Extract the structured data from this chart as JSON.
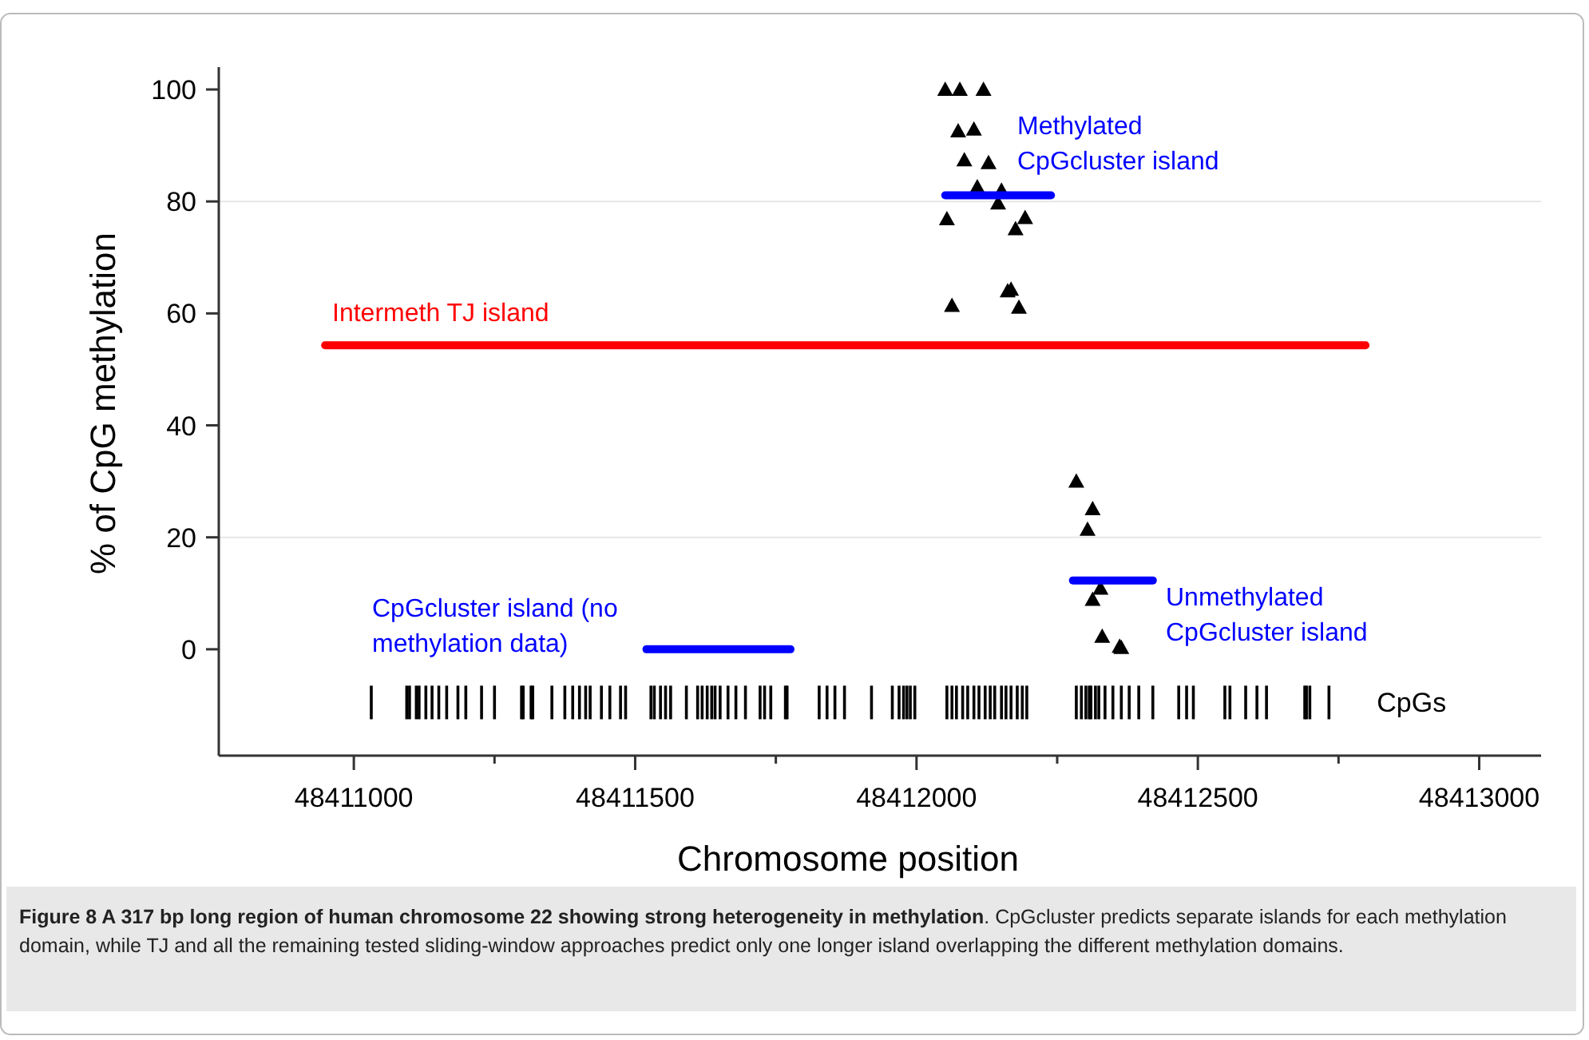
{
  "chart_data": {
    "type": "scatter",
    "xlabel": "Chromosome position",
    "ylabel": "% of CpG methylation",
    "xlim": [
      48410760,
      48413110
    ],
    "ylim": [
      -19,
      104
    ],
    "xticks": [
      48411000,
      {
        "value": 48411250,
        "label": null
      },
      48411500,
      {
        "value": 48411750,
        "label": null
      },
      48412000,
      {
        "value": 48412250,
        "label": null
      },
      48412500,
      {
        "value": 48412750,
        "label": null
      },
      48413000
    ],
    "yticks": [
      0,
      20,
      40,
      60,
      80,
      100
    ],
    "legend": "right",
    "grid": false,
    "ref_lines": [
      {
        "axis": "y",
        "value": 80,
        "color": "#e6e6e6"
      },
      {
        "axis": "y",
        "value": 20,
        "color": "#e6e6e6"
      }
    ],
    "series": [
      {
        "marker": "triangle",
        "color": "#000000",
        "x": [
          48412051,
          48412077,
          48412119,
          48412074,
          48412102,
          48412085,
          48412128,
          48412108,
          48412151,
          48412145,
          48412054,
          48412193,
          48412176,
          48412162,
          48412168,
          48412063,
          48412182,
          48412284,
          48412313,
          48412304,
          48412327,
          48412313,
          48412330,
          48412364,
          48412361
        ],
        "values": [
          100,
          100,
          100,
          92.6,
          92.9,
          87.4,
          86.9,
          82.6,
          82,
          79.7,
          76.9,
          77.1,
          75.1,
          64,
          64.3,
          61.4,
          61.1,
          30,
          25.1,
          21.4,
          10.9,
          8.9,
          2.3,
          0.3,
          0.5
        ]
      },
      {
        "type": "line",
        "color": "#ff0000",
        "x": [
          48410949,
          48412798
        ],
        "values": [
          54.3,
          54.3
        ]
      },
      {
        "type": "line",
        "color": "#0000ff",
        "x": [
          48411520,
          48411776
        ],
        "values": [
          0,
          0
        ]
      },
      {
        "type": "line",
        "color": "#0000ff",
        "x": [
          48412051,
          48412239
        ],
        "values": [
          81.1,
          81.1
        ]
      },
      {
        "type": "line",
        "color": "#0000ff",
        "x": [
          48412278,
          48412420
        ],
        "values": [
          12.3,
          12.3
        ]
      },
      {
        "name": "CpGs",
        "type": "bar",
        "base": [
          -12.5,
          -12.5,
          -12.5,
          -12.5,
          -12.5,
          -12.5,
          -12.5,
          -12.5,
          -12.5,
          -12.5,
          -12.5,
          -12.5,
          -12.5,
          -12.5,
          -12.5,
          -12.5,
          -12.5,
          -12.5,
          -12.5,
          -12.5,
          -12.5,
          -12.5,
          -12.5,
          -12.5,
          -12.5,
          -12.5,
          -12.5,
          -12.5,
          -12.5,
          -12.5,
          -12.5,
          -12.5,
          -12.5,
          -12.5,
          -12.5,
          -12.5,
          -12.5,
          -12.5,
          -12.5,
          -12.5,
          -12.5,
          -12.5,
          -12.5,
          -12.5,
          -12.5,
          -12.5,
          -12.5,
          -12.5,
          -12.5,
          -12.5,
          -12.5,
          -12.5,
          -12.5,
          -12.5,
          -12.5,
          -12.5,
          -12.5,
          -12.5,
          -12.5,
          -12.5,
          -12.5,
          -12.5,
          -12.5,
          -12.5,
          -12.5,
          -12.5,
          -12.5,
          -12.5,
          -12.5,
          -12.5,
          -12.5,
          -12.5,
          -12.5,
          -12.5,
          -12.5,
          -12.5,
          -12.5,
          -12.5,
          -12.5,
          -12.5,
          -12.5,
          -12.5,
          -12.5,
          -12.5,
          -12.5,
          -12.5,
          -12.5,
          -12.5,
          -12.5,
          -12.5,
          -12.5,
          -12.5,
          -12.5,
          -12.5,
          -12.5,
          -12.5,
          -12.5,
          -12.5,
          -12.5
        ],
        "color": "#000000",
        "x": [
          48411031,
          48411094,
          48411099,
          48411111,
          48411116,
          48411128,
          48411139,
          48411151,
          48411165,
          48411185,
          48411199,
          48411227,
          48411250,
          48411298,
          48411301,
          48411315,
          48411318,
          48411352,
          48411375,
          48411389,
          48411401,
          48411412,
          48411420,
          48411440,
          48411455,
          48411474,
          48411483,
          48411528,
          48411534,
          48411545,
          48411554,
          48411563,
          48411591,
          48411611,
          48411619,
          48411628,
          48411636,
          48411642,
          48411651,
          48411665,
          48411679,
          48411696,
          48411722,
          48411730,
          48411741,
          48411767,
          48411770,
          48411827,
          48411841,
          48411855,
          48411872,
          48411920,
          48411957,
          48411969,
          48411977,
          48411983,
          48411989,
          48411997,
          48412054,
          48412063,
          48412071,
          48412082,
          48412091,
          48412102,
          48412111,
          48412122,
          48412131,
          48412139,
          48412151,
          48412159,
          48412168,
          48412179,
          48412188,
          48412196,
          48412284,
          48412293,
          48412301,
          48412307,
          48412310,
          48412318,
          48412324,
          48412335,
          48412349,
          48412364,
          48412378,
          48412395,
          48412420,
          48412466,
          48412480,
          48412492,
          48412548,
          48412557,
          48412585,
          48412605,
          48412622,
          48412690,
          48412693,
          48412699,
          48412733
        ],
        "values": [
          6,
          6,
          6,
          6,
          6,
          6,
          6,
          6,
          6,
          6,
          6,
          6,
          6,
          6,
          6,
          6,
          6,
          6,
          6,
          6,
          6,
          6,
          6,
          6,
          6,
          6,
          6,
          6,
          6,
          6,
          6,
          6,
          6,
          6,
          6,
          6,
          6,
          6,
          6,
          6,
          6,
          6,
          6,
          6,
          6,
          6,
          6,
          6,
          6,
          6,
          6,
          6,
          6,
          6,
          6,
          6,
          6,
          6,
          6,
          6,
          6,
          6,
          6,
          6,
          6,
          6,
          6,
          6,
          6,
          6,
          6,
          6,
          6,
          6,
          6,
          6,
          6,
          6,
          6,
          6,
          6,
          6,
          6,
          6,
          6,
          6,
          6,
          6,
          6,
          6,
          6,
          6,
          6,
          6,
          6,
          6,
          6,
          6,
          6
        ]
      }
    ],
    "annotations": [
      "Methylated CpGcluster island",
      "Intermeth TJ island",
      "CpGcluster island (no methylation data)",
      "Unmethylated CpGcluster island",
      "Figure 8 A 317 bp long region of human chromosome 22 showing strong heterogeneity in methylation",
      ". CpGcluster predicts separate islands for each methylation domain, while TJ and all the remaining tested sliding-window approaches predict only one longer island overlapping the different methylation domains."
    ]
  }
}
